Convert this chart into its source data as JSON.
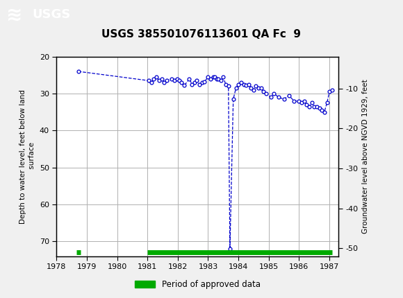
{
  "title": "USGS 385501076113601 QA Fc  9",
  "ylabel_left": "Depth to water level, feet below land\n surface",
  "ylabel_right": "Groundwater level above NGVD 1929, feet",
  "header_color": "#1a6b3c",
  "background_color": "#f0f0f0",
  "plot_bg_color": "#ffffff",
  "grid_color": "#b0b0b0",
  "line_color": "#0000cc",
  "marker_color": "#0000cc",
  "approved_color": "#00aa00",
  "xlim": [
    1978.0,
    1987.3
  ],
  "ylim_left_top": 20,
  "ylim_left_bottom": 74,
  "ylim_right_top": -2,
  "ylim_right_bottom": -52,
  "xticks": [
    1978,
    1979,
    1980,
    1981,
    1982,
    1983,
    1984,
    1985,
    1986,
    1987
  ],
  "yticks_left": [
    20,
    30,
    40,
    50,
    60,
    70
  ],
  "yticks_right": [
    -10,
    -20,
    -30,
    -40,
    -50
  ],
  "data_x": [
    1978.72,
    1981.05,
    1981.13,
    1981.2,
    1981.3,
    1981.38,
    1981.47,
    1981.55,
    1981.63,
    1981.8,
    1981.88,
    1981.97,
    1982.05,
    1982.13,
    1982.22,
    1982.38,
    1982.47,
    1982.55,
    1982.63,
    1982.72,
    1982.8,
    1982.88,
    1983.0,
    1983.08,
    1983.17,
    1983.22,
    1983.28,
    1983.33,
    1983.42,
    1983.5,
    1983.58,
    1983.67,
    1983.72,
    1983.83,
    1983.92,
    1984.0,
    1984.08,
    1984.17,
    1984.25,
    1984.33,
    1984.42,
    1984.5,
    1984.58,
    1984.67,
    1984.75,
    1984.83,
    1984.92,
    1985.08,
    1985.17,
    1985.33,
    1985.5,
    1985.67,
    1985.83,
    1986.0,
    1986.08,
    1986.17,
    1986.25,
    1986.33,
    1986.42,
    1986.5,
    1986.58,
    1986.67,
    1986.75,
    1986.83,
    1986.92,
    1987.0,
    1987.08
  ],
  "data_y": [
    24.0,
    26.5,
    27.0,
    26.0,
    25.5,
    26.5,
    26.0,
    27.0,
    26.5,
    26.0,
    26.5,
    26.0,
    26.5,
    27.0,
    27.8,
    26.0,
    27.5,
    27.0,
    26.5,
    27.5,
    27.0,
    26.8,
    25.5,
    26.0,
    25.5,
    25.5,
    26.0,
    26.0,
    26.5,
    25.5,
    27.5,
    28.0,
    72.0,
    31.5,
    28.5,
    27.5,
    27.0,
    27.5,
    27.8,
    27.5,
    28.5,
    29.0,
    28.0,
    28.5,
    28.5,
    29.5,
    30.0,
    31.0,
    30.0,
    31.0,
    31.5,
    30.5,
    32.0,
    32.0,
    32.5,
    32.0,
    33.0,
    33.5,
    32.5,
    33.5,
    33.5,
    34.0,
    34.5,
    35.0,
    32.5,
    29.5,
    29.0
  ],
  "approved_segments": [
    {
      "xstart": 1978.65,
      "xend": 1978.8
    },
    {
      "xstart": 1981.0,
      "xend": 1987.1
    }
  ],
  "approved_y": 73.0,
  "legend_label": "Period of approved data"
}
